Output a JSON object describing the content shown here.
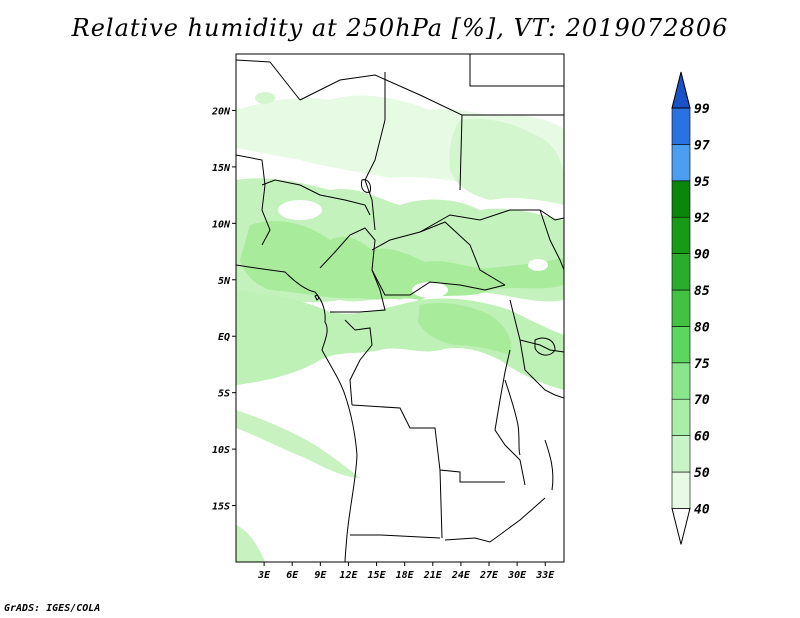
{
  "title": "Relative humidity at 250hPa [%], VT: 2019072806",
  "credit": "GrADS: IGES/COLA",
  "map": {
    "lon_range": [
      0,
      35
    ],
    "lat_range": [
      -20,
      25
    ],
    "lat_ticks": [
      {
        "value": 20,
        "label": "20N"
      },
      {
        "value": 15,
        "label": "15N"
      },
      {
        "value": 10,
        "label": "10N"
      },
      {
        "value": 5,
        "label": "5N"
      },
      {
        "value": 0,
        "label": "EQ"
      },
      {
        "value": -5,
        "label": "5S"
      },
      {
        "value": -10,
        "label": "10S"
      },
      {
        "value": -15,
        "label": "15S"
      }
    ],
    "lon_ticks": [
      {
        "value": 3,
        "label": "3E"
      },
      {
        "value": 6,
        "label": "6E"
      },
      {
        "value": 9,
        "label": "9E"
      },
      {
        "value": 12,
        "label": "12E"
      },
      {
        "value": 15,
        "label": "15E"
      },
      {
        "value": 18,
        "label": "18E"
      },
      {
        "value": 21,
        "label": "21E"
      },
      {
        "value": 24,
        "label": "24E"
      },
      {
        "value": 27,
        "label": "27E"
      },
      {
        "value": 30,
        "label": "30E"
      },
      {
        "value": 33,
        "label": "33E"
      }
    ],
    "field_colors": {
      "40": "#e7fbe4",
      "50": "#d4f6cf",
      "60": "#bdf1b5",
      "70": "#a7eb9b"
    }
  },
  "colorbar": {
    "levels": [
      "40",
      "50",
      "60",
      "70",
      "75",
      "80",
      "85",
      "90",
      "92",
      "95",
      "97",
      "99"
    ],
    "colors": [
      "#ffffff",
      "#e6fae6",
      "#c8f5c8",
      "#a8eea8",
      "#8ae68a",
      "#5cd65c",
      "#41c341",
      "#2aad2a",
      "#169b16",
      "#0a870a",
      "#4c9ff0",
      "#2a72e0",
      "#1a50c8"
    ]
  }
}
